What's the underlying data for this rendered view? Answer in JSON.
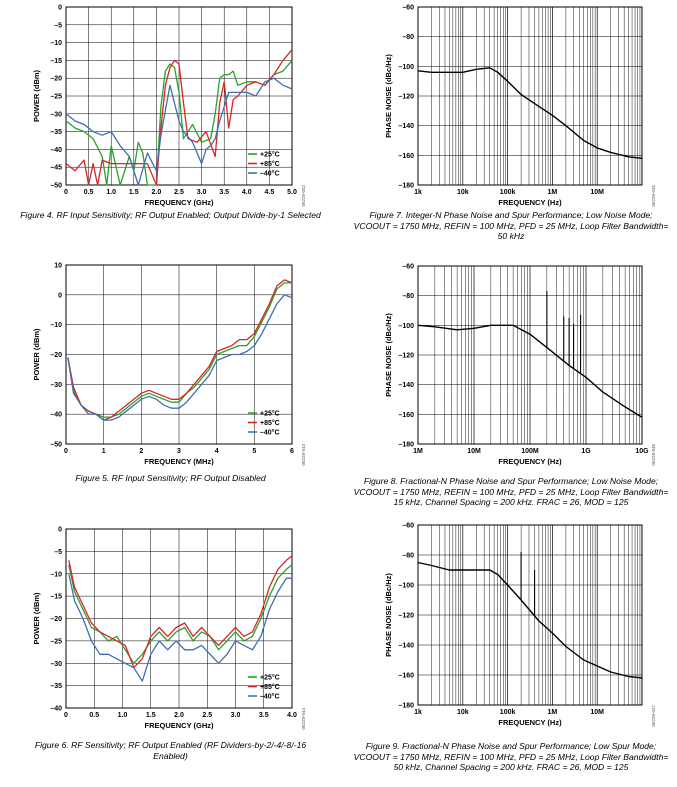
{
  "figures": [
    {
      "caption": "Figure 4. RF Input Sensitivity; RF Output Enabled; Output Divide-by-1 Selected",
      "code": "06228-042"
    },
    {
      "caption": "Figure 5. RF Input Sensitivity; RF Output Disabled",
      "code": "06228-043"
    },
    {
      "caption": "Figure 6. RF Sensitivity; RF Output Enabled (RF Dividers-by-2/-4/-8/-16 Enabled)",
      "code": "06228-044"
    },
    {
      "caption": "Figure 7. Integer-N Phase Noise and Spur Performance; Low Noise Mode; VCOOUT = 1750 MHz, REFIN = 100 MHz, PFD = 25 MHz, Loop Filter Bandwidth= 50 kHz",
      "code": "06228-045"
    },
    {
      "caption": "Figure 8. Fractional-N Phase Noise and Spur Performance; Low Noise Mode; VCOOUT = 1750 MHz, REFIN = 100 MHz, PFD = 25 MHz, Loop Filter Bandwidth= 15 kHz, Channel Spacing = 200 kHz. FRAC = 26, MOD = 125",
      "code": "06228-046"
    },
    {
      "caption": "Figure 9. Fractional-N Phase Noise and Spur Performance; Low Spur Mode; VCOOUT = 1750 MHz, REFIN = 100 MHz, PFD = 25 MHz, Loop Filter Bandwidth= 50 kHz, Channel Spacing = 200 kHz. FRAC = 26, MOD = 125",
      "code": "06228-047"
    }
  ],
  "chart_data": [
    {
      "type": "line",
      "xlabel": "FREQUENCY (GHz)",
      "ylabel": "POWER (dBm)",
      "xlim": [
        0,
        5
      ],
      "ylim": [
        -50,
        0
      ],
      "xticks": [
        0,
        0.5,
        1.0,
        1.5,
        2.0,
        2.5,
        3.0,
        3.5,
        4.0,
        4.5,
        5.0
      ],
      "xtick_labels": [
        "0",
        "0.5",
        "1.0",
        "1.5",
        "2.0",
        "2.5",
        "3.0",
        "3.5",
        "4.0",
        "4.5",
        "5.0"
      ],
      "yticks": [
        0,
        -5,
        -10,
        -15,
        -20,
        -25,
        -30,
        -35,
        -40,
        -45,
        -50
      ],
      "ytick_labels": [
        "0",
        "–5",
        "–10",
        "–15",
        "–20",
        "–25",
        "–30",
        "–35",
        "–40",
        "–45",
        "–50"
      ],
      "grid": true,
      "legend": "bottom-right",
      "series": [
        {
          "name": "+25°C",
          "color": "#2ca02c",
          "x": [
            0,
            0.2,
            0.4,
            0.6,
            0.8,
            0.9,
            1.0,
            1.2,
            1.4,
            1.5,
            1.6,
            1.7,
            1.8,
            2.0,
            2.1,
            2.2,
            2.3,
            2.4,
            2.5,
            2.6,
            2.8,
            3.0,
            3.2,
            3.3,
            3.4,
            3.5,
            3.6,
            3.7,
            3.8,
            4.0,
            4.2,
            4.4,
            4.6,
            4.8,
            5.0
          ],
          "values": [
            -32,
            -34,
            -35,
            -37,
            -42,
            -50,
            -39,
            -50,
            -42,
            -46,
            -38,
            -41,
            -50,
            -50,
            -28,
            -18,
            -16,
            -17,
            -24,
            -37,
            -33,
            -38,
            -37,
            -30,
            -20,
            -19,
            -19,
            -18,
            -22,
            -21,
            -21,
            -22,
            -19,
            -18,
            -15
          ]
        },
        {
          "name": "+85°C",
          "color": "#d62728",
          "x": [
            0,
            0.2,
            0.4,
            0.5,
            0.6,
            0.7,
            0.8,
            1.0,
            1.2,
            1.4,
            1.6,
            1.8,
            2.0,
            2.1,
            2.2,
            2.3,
            2.4,
            2.5,
            2.6,
            2.7,
            2.9,
            3.1,
            3.3,
            3.4,
            3.5,
            3.6,
            3.7,
            3.8,
            4.0,
            4.2,
            4.4,
            4.6,
            4.8,
            5.0
          ],
          "values": [
            -44,
            -46,
            -43,
            -50,
            -44,
            -50,
            -43,
            -44,
            -44,
            -44,
            -44,
            -44,
            -50,
            -34,
            -22,
            -17,
            -15,
            -16,
            -27,
            -37,
            -38,
            -35,
            -42,
            -27,
            -21,
            -34,
            -26,
            -25,
            -22,
            -21,
            -22,
            -19,
            -15,
            -12
          ]
        },
        {
          "name": "–40°C",
          "color": "#3f6fb0",
          "x": [
            0,
            0.2,
            0.4,
            0.6,
            0.8,
            1.0,
            1.2,
            1.4,
            1.6,
            1.8,
            2.0,
            2.1,
            2.2,
            2.3,
            2.4,
            2.5,
            2.6,
            2.8,
            3.0,
            3.1,
            3.2,
            3.3,
            3.4,
            3.5,
            3.6,
            3.8,
            4.0,
            4.2,
            4.4,
            4.6,
            4.8,
            5.0
          ],
          "values": [
            -30,
            -32,
            -33,
            -35,
            -36,
            -35,
            -39,
            -42,
            -50,
            -41,
            -46,
            -36,
            -29,
            -22,
            -27,
            -32,
            -35,
            -38,
            -44,
            -40,
            -39,
            -37,
            -32,
            -28,
            -24,
            -24,
            -24,
            -25,
            -21,
            -20,
            -22,
            -23
          ]
        }
      ]
    },
    {
      "type": "line",
      "xlabel": "FREQUENCY (MHz)",
      "ylabel": "POWER (dBm)",
      "xlim": [
        0,
        6
      ],
      "ylim": [
        -50,
        10
      ],
      "xticks": [
        0,
        1,
        2,
        3,
        4,
        5,
        6
      ],
      "xtick_labels": [
        "0",
        "1",
        "2",
        "3",
        "4",
        "5",
        "6"
      ],
      "yticks": [
        10,
        0,
        -10,
        -20,
        -30,
        -40,
        -50
      ],
      "ytick_labels": [
        "10",
        "0",
        "–10",
        "–20",
        "–30",
        "–40",
        "–50"
      ],
      "grid": true,
      "legend": "bottom-right",
      "series": [
        {
          "name": "+25°C",
          "color": "#2ca02c",
          "x": [
            0.05,
            0.2,
            0.4,
            0.6,
            0.8,
            1.0,
            1.2,
            1.4,
            1.6,
            1.8,
            2.0,
            2.2,
            2.4,
            2.6,
            2.8,
            3.0,
            3.2,
            3.4,
            3.6,
            3.8,
            4.0,
            4.2,
            4.4,
            4.6,
            4.8,
            5.0,
            5.2,
            5.4,
            5.6,
            5.8,
            6.0
          ],
          "values": [
            -21,
            -32,
            -37,
            -39,
            -40,
            -41,
            -41,
            -40,
            -38,
            -36,
            -34,
            -33,
            -34,
            -35,
            -36,
            -36,
            -33,
            -31,
            -28,
            -25,
            -20,
            -19,
            -18,
            -17,
            -17,
            -14,
            -9,
            -4,
            2,
            4,
            4
          ]
        },
        {
          "name": "+85°C",
          "color": "#d62728",
          "x": [
            0.05,
            0.2,
            0.4,
            0.6,
            0.8,
            1.0,
            1.2,
            1.4,
            1.6,
            1.8,
            2.0,
            2.2,
            2.4,
            2.6,
            2.8,
            3.0,
            3.2,
            3.4,
            3.6,
            3.8,
            4.0,
            4.2,
            4.4,
            4.6,
            4.8,
            5.0,
            5.2,
            5.4,
            5.6,
            5.8,
            6.0
          ],
          "values": [
            -21,
            -31,
            -37,
            -39,
            -40,
            -42,
            -41,
            -39,
            -37,
            -35,
            -33,
            -32,
            -33,
            -34,
            -35,
            -35,
            -33,
            -30,
            -27,
            -24,
            -19,
            -18,
            -17,
            -15,
            -15,
            -13,
            -8,
            -3,
            3,
            5,
            4
          ]
        },
        {
          "name": "–40°C",
          "color": "#3f6fb0",
          "x": [
            0.05,
            0.2,
            0.4,
            0.6,
            0.8,
            1.0,
            1.2,
            1.4,
            1.6,
            1.8,
            2.0,
            2.2,
            2.4,
            2.6,
            2.8,
            3.0,
            3.2,
            3.4,
            3.6,
            3.8,
            4.0,
            4.2,
            4.4,
            4.6,
            4.8,
            5.0,
            5.2,
            5.4,
            5.6,
            5.8,
            6.0
          ],
          "values": [
            -21,
            -33,
            -37,
            -40,
            -40,
            -42,
            -42,
            -41,
            -39,
            -37,
            -35,
            -34,
            -35,
            -37,
            -38,
            -38,
            -36,
            -33,
            -30,
            -27,
            -22,
            -21,
            -20,
            -20,
            -19,
            -17,
            -13,
            -8,
            -3,
            0,
            -1
          ]
        }
      ]
    },
    {
      "type": "line",
      "xlabel": "FREQUENCY (GHz)",
      "ylabel": "POWER (dBm)",
      "xlim": [
        0,
        4
      ],
      "ylim": [
        -40,
        0
      ],
      "xticks": [
        0,
        0.5,
        1.0,
        1.5,
        2.0,
        2.5,
        3.0,
        3.5,
        4.0
      ],
      "xtick_labels": [
        "0",
        "0.5",
        "1.0",
        "1.5",
        "2.0",
        "2.5",
        "3.0",
        "3.5",
        "4.0"
      ],
      "yticks": [
        0,
        -5,
        -10,
        -15,
        -20,
        -25,
        -30,
        -35,
        -40
      ],
      "ytick_labels": [
        "0",
        "–5",
        "–10",
        "–15",
        "–20",
        "–25",
        "–30",
        "–35",
        "–40"
      ],
      "grid": true,
      "legend": "bottom-right",
      "series": [
        {
          "name": "+25°C",
          "color": "#2ca02c",
          "x": [
            0.05,
            0.15,
            0.3,
            0.45,
            0.6,
            0.75,
            0.9,
            1.05,
            1.2,
            1.35,
            1.5,
            1.65,
            1.8,
            1.95,
            2.1,
            2.25,
            2.4,
            2.55,
            2.7,
            2.85,
            3.0,
            3.15,
            3.3,
            3.45,
            3.6,
            3.75,
            3.9,
            4.0
          ],
          "values": [
            -8,
            -14,
            -18,
            -22,
            -23,
            -25,
            -24,
            -27,
            -30,
            -28,
            -25,
            -23,
            -25,
            -23,
            -22,
            -25,
            -23,
            -24,
            -27,
            -25,
            -23,
            -25,
            -24,
            -20,
            -15,
            -11,
            -9,
            -8
          ]
        },
        {
          "name": "+85°C",
          "color": "#d62728",
          "x": [
            0.05,
            0.15,
            0.3,
            0.45,
            0.6,
            0.75,
            0.9,
            1.05,
            1.2,
            1.35,
            1.5,
            1.65,
            1.8,
            1.95,
            2.1,
            2.25,
            2.4,
            2.55,
            2.7,
            2.85,
            3.0,
            3.15,
            3.3,
            3.45,
            3.6,
            3.75,
            3.9,
            4.0
          ],
          "values": [
            -7,
            -13,
            -17,
            -21,
            -23,
            -24,
            -25,
            -26,
            -31,
            -29,
            -24,
            -22,
            -24,
            -22,
            -21,
            -24,
            -22,
            -24,
            -26,
            -24,
            -22,
            -24,
            -23,
            -19,
            -13,
            -9,
            -7,
            -6
          ]
        },
        {
          "name": "–40°C",
          "color": "#3f6fb0",
          "x": [
            0.05,
            0.15,
            0.3,
            0.45,
            0.6,
            0.75,
            0.9,
            1.05,
            1.2,
            1.35,
            1.5,
            1.65,
            1.8,
            1.95,
            2.1,
            2.25,
            2.4,
            2.55,
            2.7,
            2.85,
            3.0,
            3.15,
            3.3,
            3.45,
            3.6,
            3.75,
            3.9,
            4.0
          ],
          "values": [
            -10,
            -16,
            -20,
            -25,
            -28,
            -28,
            -29,
            -30,
            -31,
            -34,
            -28,
            -25,
            -27,
            -25,
            -27,
            -27,
            -26,
            -28,
            -30,
            -28,
            -25,
            -26,
            -27,
            -24,
            -18,
            -14,
            -11,
            -11
          ]
        }
      ]
    },
    {
      "type": "line",
      "scale": "log-x",
      "xlabel": "FREQUENCY (Hz)",
      "ylabel": "PHASE NOISE (dBc/Hz)",
      "xlim": [
        1000,
        100000000
      ],
      "ylim": [
        -180,
        -60
      ],
      "xticks": [
        1000,
        10000,
        100000,
        1000000,
        10000000
      ],
      "xtick_labels": [
        "1k",
        "10k",
        "100k",
        "1M",
        "10M"
      ],
      "yticks": [
        -60,
        -80,
        -100,
        -120,
        -140,
        -160,
        -180
      ],
      "ytick_labels": [
        "–60",
        "–80",
        "–100",
        "–120",
        "–140",
        "–160",
        "–180"
      ],
      "grid": true,
      "series": [
        {
          "x": [
            1000,
            2000,
            5000,
            10000,
            20000,
            40000,
            60000,
            100000,
            200000,
            500000,
            1000000,
            2000000,
            5000000,
            10000000,
            20000000,
            50000000,
            100000000
          ],
          "values": [
            -103,
            -104,
            -104,
            -104,
            -102,
            -101,
            -104,
            -110,
            -119,
            -127,
            -133,
            -140,
            -150,
            -155,
            -158,
            -161,
            -162
          ]
        }
      ]
    },
    {
      "type": "line",
      "scale": "log-x",
      "xlabel": "FREQUENCY (Hz)",
      "ylabel": "PHASE NOISE (dBc/Hz)",
      "xlim": [
        1000000,
        10000000000
      ],
      "ylim": [
        -180,
        -60
      ],
      "xticks": [
        1000000,
        10000000,
        100000000,
        1000000000,
        10000000000
      ],
      "xtick_labels": [
        "1M",
        "10M",
        "100M",
        "1G",
        "10G"
      ],
      "yticks": [
        -60,
        -80,
        -100,
        -120,
        -140,
        -160,
        -180
      ],
      "ytick_labels": [
        "–60",
        "–80",
        "–100",
        "–120",
        "–140",
        "–160",
        "–180"
      ],
      "grid": true,
      "series": [
        {
          "x": [
            1000000,
            2000000,
            5000000,
            10000000,
            20000000,
            50000000,
            100000000,
            200000000,
            500000000,
            1000000000,
            2000000000,
            5000000000,
            10000000000
          ],
          "values": [
            -100,
            -101,
            -103,
            -102,
            -100,
            -100,
            -106,
            -115,
            -127,
            -135,
            -145,
            -155,
            -162
          ]
        }
      ],
      "spurs": [
        {
          "x": 200000000,
          "peak": -77
        },
        {
          "x": 400000000,
          "peak": -94
        },
        {
          "x": 500000000,
          "peak": -95
        },
        {
          "x": 600000000,
          "peak": -99
        },
        {
          "x": 800000000,
          "peak": -93
        }
      ]
    },
    {
      "type": "line",
      "scale": "log-x",
      "xlabel": "FREQUENCY (Hz)",
      "ylabel": "PHASE NOISE (dBc/Hz)",
      "xlim": [
        1000,
        100000000
      ],
      "ylim": [
        -180,
        -60
      ],
      "xticks": [
        1000,
        10000,
        100000,
        1000000,
        10000000
      ],
      "xtick_labels": [
        "1k",
        "10k",
        "100k",
        "1M",
        "10M"
      ],
      "yticks": [
        -60,
        -80,
        -100,
        -120,
        -140,
        -160,
        -180
      ],
      "ytick_labels": [
        "–60",
        "–80",
        "–100",
        "–120",
        "–140",
        "–160",
        "–180"
      ],
      "grid": true,
      "series": [
        {
          "x": [
            1000,
            2000,
            5000,
            10000,
            20000,
            40000,
            60000,
            100000,
            200000,
            500000,
            1000000,
            2000000,
            5000000,
            10000000,
            20000000,
            50000000,
            100000000
          ],
          "values": [
            -85,
            -87,
            -90,
            -90,
            -90,
            -90,
            -93,
            -100,
            -110,
            -124,
            -132,
            -141,
            -150,
            -154,
            -158,
            -161,
            -162
          ]
        }
      ],
      "spurs": [
        {
          "x": 200000,
          "peak": -78
        },
        {
          "x": 400000,
          "peak": -90
        }
      ]
    }
  ]
}
